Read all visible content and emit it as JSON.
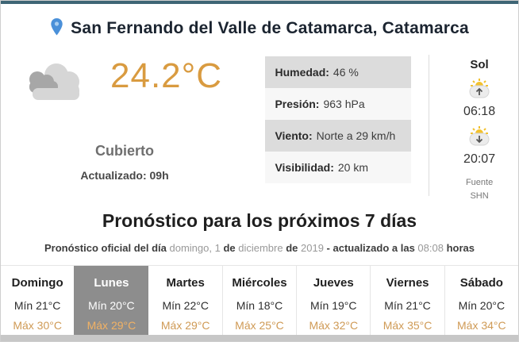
{
  "header": {
    "location": "San Fernando del Valle de Catamarca, Catamarca"
  },
  "current": {
    "temperature": "24.2°C",
    "condition": "Cubierto",
    "updated": "Actualizado: 09h",
    "condition_icon": "cloudy-icon",
    "details": [
      {
        "label": "Humedad:",
        "value": "46 %"
      },
      {
        "label": "Presión:",
        "value": "963 hPa"
      },
      {
        "label": "Viento:",
        "value": "Norte a 29 km/h"
      },
      {
        "label": "Visibilidad:",
        "value": "20 km"
      }
    ],
    "sun": {
      "title": "Sol",
      "sunrise": "06:18",
      "sunset": "20:07",
      "source_line1": "Fuente",
      "source_line2": "SHN"
    }
  },
  "forecast": {
    "title": "Pronóstico para los próximos 7 días",
    "subtitle_segments": [
      {
        "text": "Pronóstico oficial del día ",
        "bold": true
      },
      {
        "text": "domingo, 1 ",
        "bold": false
      },
      {
        "text": "de ",
        "bold": true
      },
      {
        "text": "diciembre ",
        "bold": false
      },
      {
        "text": "de ",
        "bold": true
      },
      {
        "text": "2019 ",
        "bold": false
      },
      {
        "text": "- actualizado a las ",
        "bold": true
      },
      {
        "text": "08:08 ",
        "bold": false
      },
      {
        "text": "horas",
        "bold": true
      }
    ],
    "days": [
      {
        "name": "Domingo",
        "min": "Mín 21°C",
        "max": "Máx 30°C",
        "selected": false
      },
      {
        "name": "Lunes",
        "min": "Mín 20°C",
        "max": "Máx 29°C",
        "selected": true
      },
      {
        "name": "Martes",
        "min": "Mín 22°C",
        "max": "Máx 29°C",
        "selected": false
      },
      {
        "name": "Miércoles",
        "min": "Mín 18°C",
        "max": "Máx 25°C",
        "selected": false
      },
      {
        "name": "Jueves",
        "min": "Mín 19°C",
        "max": "Máx 32°C",
        "selected": false
      },
      {
        "name": "Viernes",
        "min": "Mín 21°C",
        "max": "Máx 35°C",
        "selected": false
      },
      {
        "name": "Sábado",
        "min": "Mín 20°C",
        "max": "Máx 34°C",
        "selected": false
      }
    ]
  },
  "colors": {
    "temperature_accent": "#d99b40",
    "max_temp": "#cf9a55",
    "selected_day_bg": "#8d8d8d",
    "topbar": "#3e6575",
    "pin_blue": "#4a90d9"
  }
}
